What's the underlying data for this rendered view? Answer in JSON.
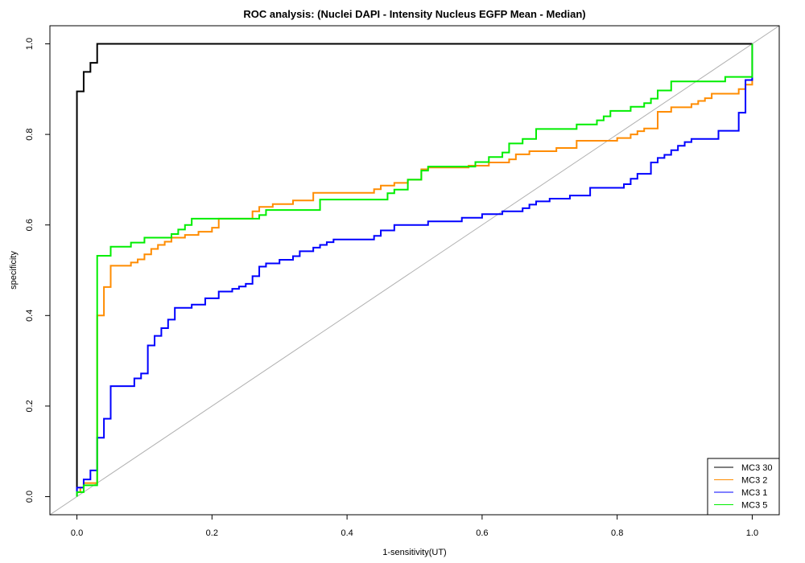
{
  "chart_data": {
    "type": "line",
    "title": "ROC analysis: (Nuclei DAPI - Intensity Nucleus EGFP Mean - Median)",
    "xlabel": "1-sensitivity(UT)",
    "ylabel": "specificity",
    "xlim": [
      -0.04,
      1.04
    ],
    "ylim": [
      -0.04,
      1.04
    ],
    "x_ticks": [
      0.0,
      0.2,
      0.4,
      0.6,
      0.8,
      1.0
    ],
    "x_tick_labels": [
      "0.0",
      "0.2",
      "0.4",
      "0.6",
      "0.8",
      "1.0"
    ],
    "y_ticks": [
      0.0,
      0.2,
      0.4,
      0.6,
      0.8,
      1.0
    ],
    "y_tick_labels": [
      "0.0",
      "0.2",
      "0.4",
      "0.6",
      "0.8",
      "1.0"
    ],
    "grid": false,
    "legend_position": "bottom-right",
    "reference_line": {
      "from": [
        -0.04,
        -0.04
      ],
      "to": [
        1.04,
        1.04
      ],
      "color": "#b0b0b0"
    },
    "series": [
      {
        "name": "MC3 30",
        "color": "#000000",
        "points": [
          [
            0,
            0
          ],
          [
            0,
            0.895
          ],
          [
            0.01,
            0.895
          ],
          [
            0.01,
            0.938
          ],
          [
            0.02,
            0.938
          ],
          [
            0.02,
            0.958
          ],
          [
            0.03,
            0.958
          ],
          [
            0.03,
            1.0
          ],
          [
            1.0,
            1.0
          ]
        ]
      },
      {
        "name": "MC3 2",
        "color": "#ff8c00",
        "points": [
          [
            0,
            0
          ],
          [
            0,
            0.01
          ],
          [
            0.005,
            0.01
          ],
          [
            0.005,
            0.02
          ],
          [
            0.01,
            0.02
          ],
          [
            0.01,
            0.03
          ],
          [
            0.03,
            0.03
          ],
          [
            0.03,
            0.4
          ],
          [
            0.04,
            0.4
          ],
          [
            0.04,
            0.463
          ],
          [
            0.05,
            0.463
          ],
          [
            0.05,
            0.51
          ],
          [
            0.08,
            0.51
          ],
          [
            0.08,
            0.517
          ],
          [
            0.09,
            0.517
          ],
          [
            0.09,
            0.524
          ],
          [
            0.1,
            0.524
          ],
          [
            0.1,
            0.535
          ],
          [
            0.11,
            0.535
          ],
          [
            0.11,
            0.547
          ],
          [
            0.12,
            0.547
          ],
          [
            0.12,
            0.556
          ],
          [
            0.13,
            0.556
          ],
          [
            0.13,
            0.563
          ],
          [
            0.14,
            0.563
          ],
          [
            0.14,
            0.572
          ],
          [
            0.16,
            0.572
          ],
          [
            0.16,
            0.578
          ],
          [
            0.18,
            0.578
          ],
          [
            0.18,
            0.585
          ],
          [
            0.2,
            0.585
          ],
          [
            0.2,
            0.594
          ],
          [
            0.21,
            0.594
          ],
          [
            0.21,
            0.614
          ],
          [
            0.26,
            0.614
          ],
          [
            0.26,
            0.63
          ],
          [
            0.27,
            0.63
          ],
          [
            0.27,
            0.64
          ],
          [
            0.29,
            0.64
          ],
          [
            0.29,
            0.646
          ],
          [
            0.32,
            0.646
          ],
          [
            0.32,
            0.654
          ],
          [
            0.35,
            0.654
          ],
          [
            0.35,
            0.671
          ],
          [
            0.44,
            0.671
          ],
          [
            0.44,
            0.679
          ],
          [
            0.45,
            0.679
          ],
          [
            0.45,
            0.687
          ],
          [
            0.47,
            0.687
          ],
          [
            0.47,
            0.693
          ],
          [
            0.49,
            0.693
          ],
          [
            0.49,
            0.7
          ],
          [
            0.51,
            0.7
          ],
          [
            0.51,
            0.723
          ],
          [
            0.52,
            0.723
          ],
          [
            0.52,
            0.727
          ],
          [
            0.58,
            0.727
          ],
          [
            0.58,
            0.731
          ],
          [
            0.61,
            0.731
          ],
          [
            0.61,
            0.738
          ],
          [
            0.64,
            0.738
          ],
          [
            0.64,
            0.745
          ],
          [
            0.65,
            0.745
          ],
          [
            0.65,
            0.756
          ],
          [
            0.67,
            0.756
          ],
          [
            0.67,
            0.763
          ],
          [
            0.71,
            0.763
          ],
          [
            0.71,
            0.77
          ],
          [
            0.74,
            0.77
          ],
          [
            0.74,
            0.786
          ],
          [
            0.8,
            0.786
          ],
          [
            0.8,
            0.792
          ],
          [
            0.82,
            0.792
          ],
          [
            0.82,
            0.8
          ],
          [
            0.83,
            0.8
          ],
          [
            0.83,
            0.807
          ],
          [
            0.84,
            0.807
          ],
          [
            0.84,
            0.813
          ],
          [
            0.86,
            0.813
          ],
          [
            0.86,
            0.85
          ],
          [
            0.88,
            0.85
          ],
          [
            0.88,
            0.86
          ],
          [
            0.91,
            0.86
          ],
          [
            0.91,
            0.867
          ],
          [
            0.92,
            0.867
          ],
          [
            0.92,
            0.874
          ],
          [
            0.93,
            0.874
          ],
          [
            0.93,
            0.88
          ],
          [
            0.94,
            0.88
          ],
          [
            0.94,
            0.89
          ],
          [
            0.98,
            0.89
          ],
          [
            0.98,
            0.9
          ],
          [
            0.99,
            0.9
          ],
          [
            0.99,
            0.91
          ],
          [
            1.0,
            0.91
          ],
          [
            1.0,
            1.0
          ]
        ]
      },
      {
        "name": "MC3 1",
        "color": "#0000ff",
        "points": [
          [
            0,
            0
          ],
          [
            0,
            0.02
          ],
          [
            0.01,
            0.02
          ],
          [
            0.01,
            0.038
          ],
          [
            0.02,
            0.038
          ],
          [
            0.02,
            0.058
          ],
          [
            0.03,
            0.058
          ],
          [
            0.03,
            0.13
          ],
          [
            0.04,
            0.13
          ],
          [
            0.04,
            0.172
          ],
          [
            0.05,
            0.172
          ],
          [
            0.05,
            0.244
          ],
          [
            0.085,
            0.244
          ],
          [
            0.085,
            0.261
          ],
          [
            0.095,
            0.261
          ],
          [
            0.095,
            0.272
          ],
          [
            0.105,
            0.272
          ],
          [
            0.105,
            0.334
          ],
          [
            0.115,
            0.334
          ],
          [
            0.115,
            0.355
          ],
          [
            0.125,
            0.355
          ],
          [
            0.125,
            0.372
          ],
          [
            0.135,
            0.372
          ],
          [
            0.135,
            0.391
          ],
          [
            0.145,
            0.391
          ],
          [
            0.145,
            0.417
          ],
          [
            0.17,
            0.417
          ],
          [
            0.17,
            0.424
          ],
          [
            0.19,
            0.424
          ],
          [
            0.19,
            0.438
          ],
          [
            0.21,
            0.438
          ],
          [
            0.21,
            0.453
          ],
          [
            0.23,
            0.453
          ],
          [
            0.23,
            0.459
          ],
          [
            0.24,
            0.459
          ],
          [
            0.24,
            0.464
          ],
          [
            0.25,
            0.464
          ],
          [
            0.25,
            0.47
          ],
          [
            0.26,
            0.47
          ],
          [
            0.26,
            0.487
          ],
          [
            0.27,
            0.487
          ],
          [
            0.27,
            0.508
          ],
          [
            0.28,
            0.508
          ],
          [
            0.28,
            0.515
          ],
          [
            0.3,
            0.515
          ],
          [
            0.3,
            0.523
          ],
          [
            0.32,
            0.523
          ],
          [
            0.32,
            0.531
          ],
          [
            0.33,
            0.531
          ],
          [
            0.33,
            0.542
          ],
          [
            0.35,
            0.542
          ],
          [
            0.35,
            0.55
          ],
          [
            0.36,
            0.55
          ],
          [
            0.36,
            0.556
          ],
          [
            0.37,
            0.556
          ],
          [
            0.37,
            0.562
          ],
          [
            0.38,
            0.562
          ],
          [
            0.38,
            0.568
          ],
          [
            0.44,
            0.568
          ],
          [
            0.44,
            0.576
          ],
          [
            0.45,
            0.576
          ],
          [
            0.45,
            0.588
          ],
          [
            0.47,
            0.588
          ],
          [
            0.47,
            0.6
          ],
          [
            0.52,
            0.6
          ],
          [
            0.52,
            0.608
          ],
          [
            0.57,
            0.608
          ],
          [
            0.57,
            0.616
          ],
          [
            0.6,
            0.616
          ],
          [
            0.6,
            0.624
          ],
          [
            0.63,
            0.624
          ],
          [
            0.63,
            0.63
          ],
          [
            0.66,
            0.63
          ],
          [
            0.66,
            0.637
          ],
          [
            0.67,
            0.637
          ],
          [
            0.67,
            0.645
          ],
          [
            0.68,
            0.645
          ],
          [
            0.68,
            0.652
          ],
          [
            0.7,
            0.652
          ],
          [
            0.7,
            0.658
          ],
          [
            0.73,
            0.658
          ],
          [
            0.73,
            0.665
          ],
          [
            0.76,
            0.665
          ],
          [
            0.76,
            0.682
          ],
          [
            0.81,
            0.682
          ],
          [
            0.81,
            0.69
          ],
          [
            0.82,
            0.69
          ],
          [
            0.82,
            0.702
          ],
          [
            0.83,
            0.702
          ],
          [
            0.83,
            0.713
          ],
          [
            0.85,
            0.713
          ],
          [
            0.85,
            0.738
          ],
          [
            0.86,
            0.738
          ],
          [
            0.86,
            0.748
          ],
          [
            0.87,
            0.748
          ],
          [
            0.87,
            0.755
          ],
          [
            0.88,
            0.755
          ],
          [
            0.88,
            0.765
          ],
          [
            0.89,
            0.765
          ],
          [
            0.89,
            0.775
          ],
          [
            0.9,
            0.775
          ],
          [
            0.9,
            0.783
          ],
          [
            0.91,
            0.783
          ],
          [
            0.91,
            0.79
          ],
          [
            0.95,
            0.79
          ],
          [
            0.95,
            0.808
          ],
          [
            0.98,
            0.808
          ],
          [
            0.98,
            0.848
          ],
          [
            0.99,
            0.848
          ],
          [
            0.99,
            0.92
          ],
          [
            1.0,
            0.92
          ],
          [
            1.0,
            1.0
          ]
        ]
      },
      {
        "name": "MC3 5",
        "color": "#00ee00",
        "points": [
          [
            0,
            0
          ],
          [
            0,
            0.01
          ],
          [
            0.01,
            0.01
          ],
          [
            0.01,
            0.025
          ],
          [
            0.03,
            0.025
          ],
          [
            0.03,
            0.532
          ],
          [
            0.05,
            0.532
          ],
          [
            0.05,
            0.552
          ],
          [
            0.08,
            0.552
          ],
          [
            0.08,
            0.561
          ],
          [
            0.1,
            0.561
          ],
          [
            0.1,
            0.572
          ],
          [
            0.14,
            0.572
          ],
          [
            0.14,
            0.58
          ],
          [
            0.15,
            0.58
          ],
          [
            0.15,
            0.59
          ],
          [
            0.16,
            0.59
          ],
          [
            0.16,
            0.6
          ],
          [
            0.17,
            0.6
          ],
          [
            0.17,
            0.614
          ],
          [
            0.27,
            0.614
          ],
          [
            0.27,
            0.622
          ],
          [
            0.28,
            0.622
          ],
          [
            0.28,
            0.633
          ],
          [
            0.36,
            0.633
          ],
          [
            0.36,
            0.656
          ],
          [
            0.46,
            0.656
          ],
          [
            0.46,
            0.67
          ],
          [
            0.47,
            0.67
          ],
          [
            0.47,
            0.678
          ],
          [
            0.49,
            0.678
          ],
          [
            0.49,
            0.7
          ],
          [
            0.51,
            0.7
          ],
          [
            0.51,
            0.72
          ],
          [
            0.52,
            0.72
          ],
          [
            0.52,
            0.729
          ],
          [
            0.59,
            0.729
          ],
          [
            0.59,
            0.739
          ],
          [
            0.61,
            0.739
          ],
          [
            0.61,
            0.75
          ],
          [
            0.63,
            0.75
          ],
          [
            0.63,
            0.76
          ],
          [
            0.64,
            0.76
          ],
          [
            0.64,
            0.78
          ],
          [
            0.66,
            0.78
          ],
          [
            0.66,
            0.79
          ],
          [
            0.68,
            0.79
          ],
          [
            0.68,
            0.812
          ],
          [
            0.74,
            0.812
          ],
          [
            0.74,
            0.822
          ],
          [
            0.77,
            0.822
          ],
          [
            0.77,
            0.831
          ],
          [
            0.78,
            0.831
          ],
          [
            0.78,
            0.84
          ],
          [
            0.79,
            0.84
          ],
          [
            0.79,
            0.852
          ],
          [
            0.82,
            0.852
          ],
          [
            0.82,
            0.861
          ],
          [
            0.84,
            0.861
          ],
          [
            0.84,
            0.869
          ],
          [
            0.85,
            0.869
          ],
          [
            0.85,
            0.879
          ],
          [
            0.86,
            0.879
          ],
          [
            0.86,
            0.897
          ],
          [
            0.88,
            0.897
          ],
          [
            0.88,
            0.917
          ],
          [
            0.96,
            0.917
          ],
          [
            0.96,
            0.927
          ],
          [
            1.0,
            0.927
          ],
          [
            1.0,
            1.0
          ]
        ]
      }
    ]
  }
}
